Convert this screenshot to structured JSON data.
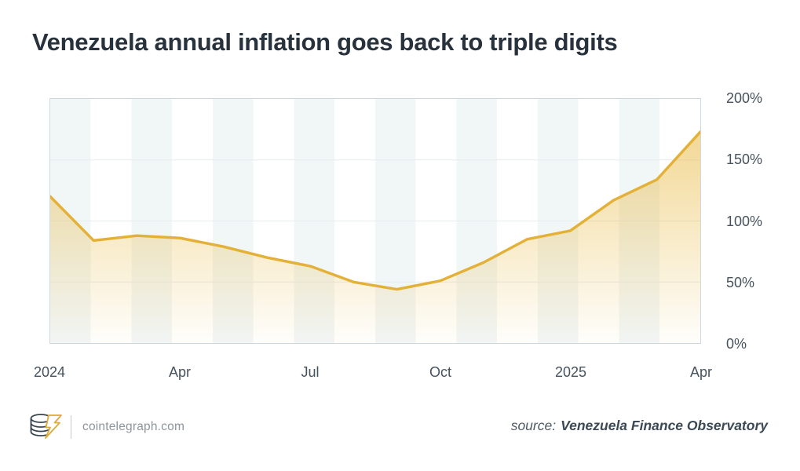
{
  "title": "Venezuela annual inflation goes back to triple digits",
  "chart_data": {
    "type": "area",
    "title": "Venezuela annual inflation goes back to triple digits",
    "x": [
      "Jan 2024",
      "Feb 2024",
      "Mar 2024",
      "Apr 2024",
      "May 2024",
      "Jun 2024",
      "Jul 2024",
      "Aug 2024",
      "Sep 2024",
      "Oct 2024",
      "Nov 2024",
      "Dec 2024",
      "Jan 2025",
      "Feb 2025",
      "Mar 2025",
      "Apr 2025"
    ],
    "values": [
      120,
      84,
      88,
      86,
      79,
      70,
      63,
      50,
      44,
      51,
      66,
      85,
      92,
      117,
      134,
      173
    ],
    "unit": "%",
    "ylim": [
      0,
      200
    ],
    "y_tick_labels": [
      "200%",
      "150%",
      "100%",
      "50%",
      "0%"
    ],
    "y_grid_values": [
      150,
      100,
      50
    ],
    "x_tick_labels": [
      "2024",
      "Apr",
      "Jul",
      "Oct",
      "2025",
      "Apr"
    ],
    "x_tick_indices": [
      0,
      3,
      6,
      9,
      12,
      15
    ],
    "grid_on": true,
    "legend_position": "none",
    "line_color": "#e4b138",
    "fill_color": "#e8b83e",
    "band_color": "#f1f6f7",
    "gridline_color": "#e7ecef",
    "border_color": "#cdd8e0"
  },
  "footer": {
    "brand": "cointelegraph.com",
    "source_prefix": "source:",
    "source_name": "Venezuela Finance Observatory"
  },
  "icons": {
    "logo": "cointelegraph-coins-lightning-icon"
  },
  "colors": {
    "title": "#28323c",
    "axis_label": "#46525d",
    "brand_text": "#8d959b",
    "source_text": "#3c4955",
    "logo_dark": "#39434e",
    "logo_gold": "#dcab39"
  }
}
